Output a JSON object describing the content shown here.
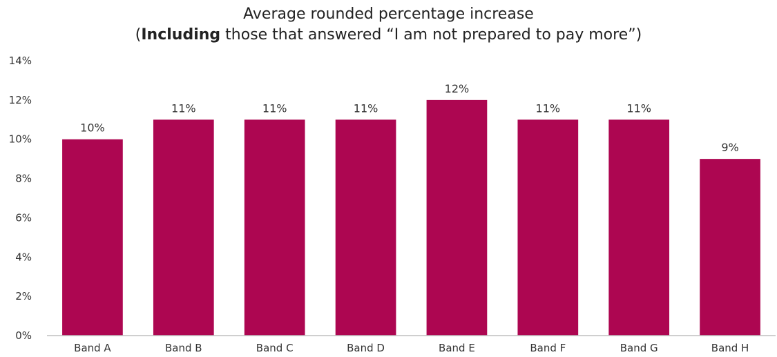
{
  "chart_data": {
    "type": "bar",
    "title": "Average rounded percentage increase",
    "subtitle": {
      "open": "(",
      "bold": "Including",
      "rest": " those that answered “I am not prepared to pay more”)"
    },
    "categories": [
      "Band A",
      "Band B",
      "Band C",
      "Band D",
      "Band E",
      "Band F",
      "Band G",
      "Band H"
    ],
    "values": [
      10,
      11,
      11,
      11,
      12,
      11,
      11,
      9
    ],
    "data_labels": [
      "10%",
      "11%",
      "11%",
      "11%",
      "12%",
      "11%",
      "11%",
      "9%"
    ],
    "ylim": [
      0,
      14
    ],
    "yticks": [
      0,
      2,
      4,
      6,
      8,
      10,
      12,
      14
    ],
    "ytick_labels": [
      "0%",
      "2%",
      "4%",
      "6%",
      "8%",
      "10%",
      "12%",
      "14%"
    ],
    "xlabel": "",
    "ylabel": "",
    "grid": false,
    "legend": "none",
    "bar_color": "#AD0651",
    "axis_color": "#BFBFBF"
  }
}
